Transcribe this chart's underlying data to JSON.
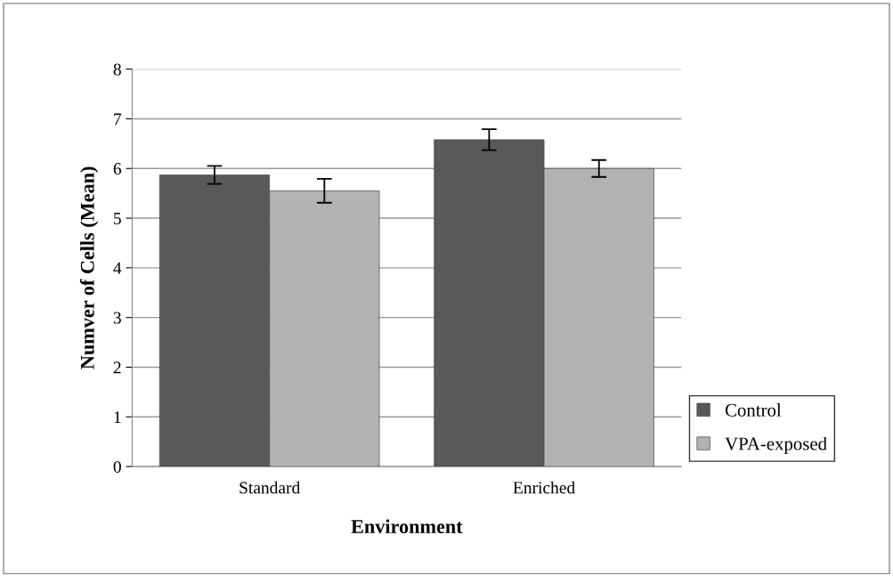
{
  "chart_data": {
    "type": "bar",
    "xlabel": "Environment",
    "ylabel": "Numver of Cells (Mean)",
    "categories": [
      "Standard",
      "Enriched"
    ],
    "series": [
      {
        "name": "Control",
        "color": "#595959",
        "values": [
          5.87,
          6.58
        ],
        "errors": [
          0.18,
          0.21
        ]
      },
      {
        "name": "VPA-exposed",
        "color": "#b2b2b2",
        "values": [
          5.55,
          6.0
        ],
        "errors": [
          0.24,
          0.17
        ]
      }
    ],
    "ylim": [
      0,
      8
    ],
    "yticks": [
      0,
      1,
      2,
      3,
      4,
      5,
      6,
      7,
      8
    ],
    "grid": "y",
    "legend": "bottom right"
  }
}
